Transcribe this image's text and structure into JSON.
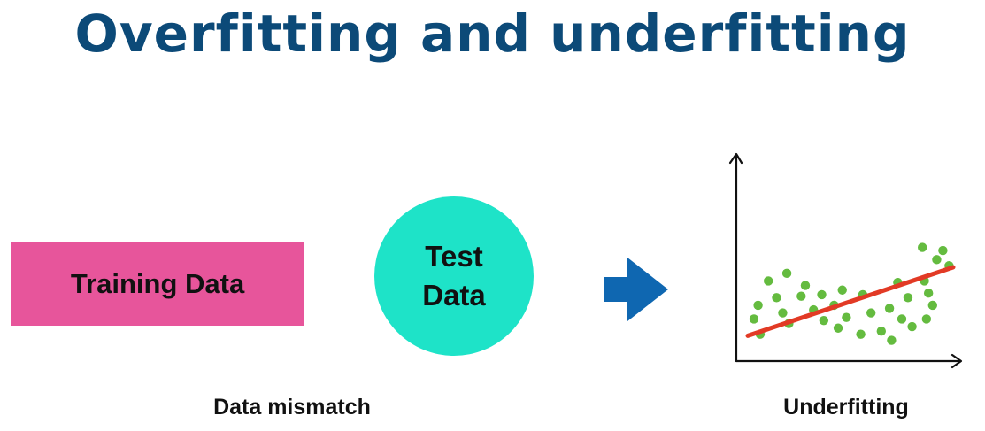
{
  "title": "Overfitting and underfitting",
  "training": {
    "label": "Training Data",
    "color": "#e7559b"
  },
  "test": {
    "line1": "Test",
    "line2": "Data",
    "color": "#1ee3c8"
  },
  "arrow": {
    "icon": "right-arrow-icon",
    "color": "#0f67b1"
  },
  "captions": {
    "left": "Data mismatch",
    "right": "Underfitting"
  },
  "plot": {
    "type": "scatter",
    "point_color": "#64bb3f",
    "line_color": "#e23a25",
    "axis_color": "#111111",
    "line_y_range": [
      0.12,
      0.57
    ],
    "points": [
      [
        0.1,
        0.48
      ],
      [
        0.19,
        0.53
      ],
      [
        0.28,
        0.45
      ],
      [
        0.05,
        0.32
      ],
      [
        0.14,
        0.37
      ],
      [
        0.26,
        0.38
      ],
      [
        0.36,
        0.39
      ],
      [
        0.46,
        0.42
      ],
      [
        0.03,
        0.23
      ],
      [
        0.17,
        0.27
      ],
      [
        0.32,
        0.29
      ],
      [
        0.42,
        0.32
      ],
      [
        0.56,
        0.39
      ],
      [
        0.06,
        0.13
      ],
      [
        0.2,
        0.2
      ],
      [
        0.37,
        0.22
      ],
      [
        0.48,
        0.24
      ],
      [
        0.6,
        0.27
      ],
      [
        0.44,
        0.17
      ],
      [
        0.55,
        0.13
      ],
      [
        0.65,
        0.15
      ],
      [
        0.75,
        0.23
      ],
      [
        0.69,
        0.3
      ],
      [
        0.73,
        0.47
      ],
      [
        0.86,
        0.48
      ],
      [
        0.9,
        0.32
      ],
      [
        0.78,
        0.37
      ],
      [
        0.87,
        0.23
      ],
      [
        0.8,
        0.18
      ],
      [
        0.7,
        0.09
      ],
      [
        0.85,
        0.7
      ],
      [
        0.92,
        0.62
      ],
      [
        0.95,
        0.68
      ],
      [
        0.98,
        0.58
      ],
      [
        0.88,
        0.4
      ]
    ]
  }
}
